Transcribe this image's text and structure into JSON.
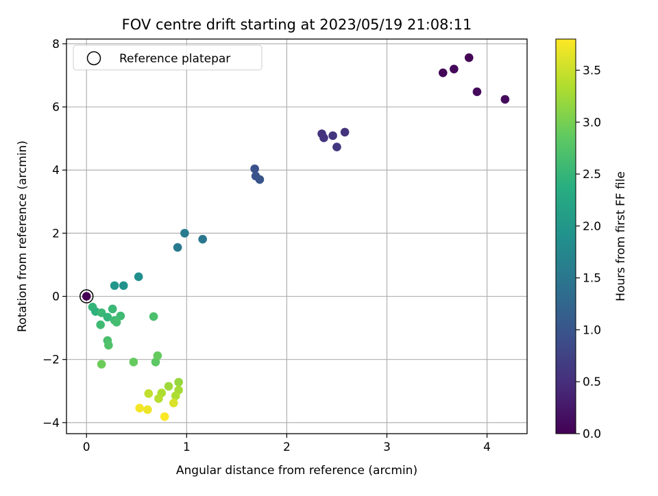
{
  "chart_data": {
    "type": "scatter",
    "title": "FOV centre drift starting at 2023/05/19 21:08:11",
    "xlabel": "Angular distance from reference (arcmin)",
    "ylabel": "Rotation from reference (arcmin)",
    "xlim": [
      -0.2,
      4.4
    ],
    "ylim": [
      -4.35,
      8.15
    ],
    "xticks": [
      0,
      1,
      2,
      3,
      4
    ],
    "xtick_labels": [
      "0",
      "1",
      "2",
      "3",
      "4"
    ],
    "yticks": [
      -4,
      -2,
      0,
      2,
      4,
      6,
      8
    ],
    "ytick_labels": [
      "−4",
      "−2",
      "0",
      "2",
      "4",
      "6",
      "8"
    ],
    "grid": true,
    "legend": {
      "position": "top-left",
      "entries": [
        "Reference platepar"
      ]
    },
    "colorbar": {
      "label": "Hours from first FF file",
      "colormap": "viridis",
      "range": [
        0.0,
        3.8
      ],
      "ticks": [
        0.0,
        0.5,
        1.0,
        1.5,
        2.0,
        2.5,
        3.0,
        3.5
      ],
      "tick_labels": [
        "0.0",
        "0.5",
        "1.0",
        "1.5",
        "2.0",
        "2.5",
        "3.0",
        "3.5"
      ]
    },
    "reference_point": {
      "x": 0,
      "y": 0
    },
    "points": [
      {
        "x": 0.0,
        "y": 0.0,
        "hours": 0.0
      },
      {
        "x": 3.56,
        "y": 7.08,
        "hours": 0.05
      },
      {
        "x": 3.67,
        "y": 7.2,
        "hours": 0.08
      },
      {
        "x": 3.82,
        "y": 7.56,
        "hours": 0.02
      },
      {
        "x": 3.9,
        "y": 6.48,
        "hours": 0.1
      },
      {
        "x": 4.18,
        "y": 6.24,
        "hours": 0.12
      },
      {
        "x": 2.35,
        "y": 5.15,
        "hours": 0.55
      },
      {
        "x": 2.37,
        "y": 5.02,
        "hours": 0.58
      },
      {
        "x": 2.46,
        "y": 5.09,
        "hours": 0.6
      },
      {
        "x": 2.5,
        "y": 4.73,
        "hours": 0.62
      },
      {
        "x": 2.58,
        "y": 5.2,
        "hours": 0.57
      },
      {
        "x": 1.68,
        "y": 4.04,
        "hours": 0.95
      },
      {
        "x": 1.69,
        "y": 3.81,
        "hours": 0.98
      },
      {
        "x": 1.73,
        "y": 3.7,
        "hours": 1.0
      },
      {
        "x": 0.98,
        "y": 2.0,
        "hours": 1.6
      },
      {
        "x": 0.91,
        "y": 1.55,
        "hours": 1.55
      },
      {
        "x": 1.16,
        "y": 1.81,
        "hours": 1.5
      },
      {
        "x": 0.52,
        "y": 0.62,
        "hours": 1.9
      },
      {
        "x": 0.28,
        "y": 0.34,
        "hours": 2.0
      },
      {
        "x": 0.37,
        "y": 0.34,
        "hours": 1.95
      },
      {
        "x": 0.06,
        "y": -0.34,
        "hours": 2.5
      },
      {
        "x": 0.09,
        "y": -0.48,
        "hours": 2.45
      },
      {
        "x": 0.15,
        "y": -0.52,
        "hours": 2.55
      },
      {
        "x": 0.21,
        "y": -0.66,
        "hours": 2.5
      },
      {
        "x": 0.26,
        "y": -0.4,
        "hours": 2.55
      },
      {
        "x": 0.28,
        "y": -0.76,
        "hours": 2.6
      },
      {
        "x": 0.34,
        "y": -0.62,
        "hours": 2.6
      },
      {
        "x": 0.14,
        "y": -0.9,
        "hours": 2.6
      },
      {
        "x": 0.3,
        "y": -0.82,
        "hours": 2.65
      },
      {
        "x": 0.67,
        "y": -0.64,
        "hours": 2.7
      },
      {
        "x": 0.21,
        "y": -1.4,
        "hours": 2.7
      },
      {
        "x": 0.22,
        "y": -1.55,
        "hours": 2.75
      },
      {
        "x": 0.15,
        "y": -2.15,
        "hours": 2.95
      },
      {
        "x": 0.47,
        "y": -2.08,
        "hours": 2.9
      },
      {
        "x": 0.69,
        "y": -2.08,
        "hours": 2.85
      },
      {
        "x": 0.71,
        "y": -1.88,
        "hours": 2.9
      },
      {
        "x": 0.92,
        "y": -2.72,
        "hours": 3.2
      },
      {
        "x": 0.82,
        "y": -2.85,
        "hours": 3.25
      },
      {
        "x": 0.92,
        "y": -2.97,
        "hours": 3.3
      },
      {
        "x": 0.89,
        "y": -3.15,
        "hours": 3.35
      },
      {
        "x": 0.62,
        "y": -3.08,
        "hours": 3.45
      },
      {
        "x": 0.75,
        "y": -3.06,
        "hours": 3.35
      },
      {
        "x": 0.72,
        "y": -3.24,
        "hours": 3.4
      },
      {
        "x": 0.87,
        "y": -3.38,
        "hours": 3.6
      },
      {
        "x": 0.53,
        "y": -3.54,
        "hours": 3.75
      },
      {
        "x": 0.61,
        "y": -3.59,
        "hours": 3.7
      },
      {
        "x": 0.78,
        "y": -3.81,
        "hours": 3.78
      }
    ]
  }
}
